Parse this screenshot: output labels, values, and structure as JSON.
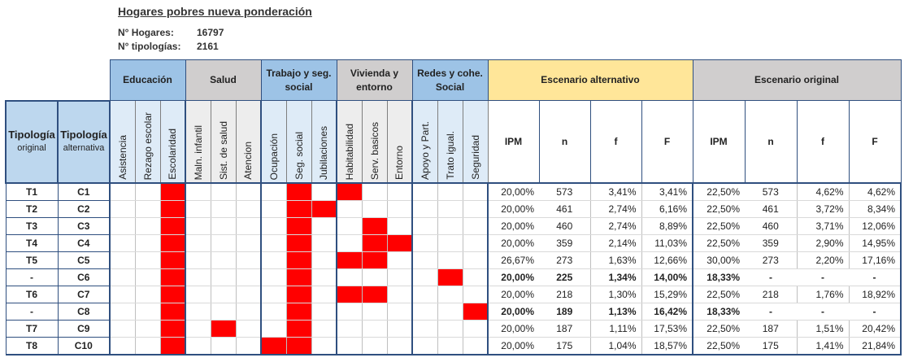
{
  "title": "Hogares pobres nueva ponderación",
  "info": {
    "hogares_label": "N° Hogares:",
    "hogares_value": "16797",
    "tipologias_label": "N° tipologías:",
    "tipologias_value": "2161"
  },
  "groups": {
    "educacion": "Educación",
    "salud": "Salud",
    "trabajo": "Trabajo y seg. social",
    "vivienda": "Vivienda y entorno",
    "redes": "Redes y cohe. Social",
    "alternativo": "Escenario alternativo",
    "original": "Escenario original"
  },
  "tipologia_original": {
    "title": "Tipología",
    "sub": "original"
  },
  "tipologia_alternativa": {
    "title": "Tipología",
    "sub": "alternativa"
  },
  "indicators": [
    "Asistencia",
    "Rezago escolar",
    "Escolaridad",
    "Maln. infantil",
    "Sist. de salud",
    "Atencion",
    "Ocupación",
    "Seg. social",
    "Jubilaciones",
    "Habitabilidad",
    "Serv. basicos",
    "Entorno",
    "Apoyo y Part.",
    "Trato igual.",
    "Seguridad"
  ],
  "metric_headers": [
    "IPM",
    "n",
    "f",
    "F",
    "IPM",
    "n",
    "f",
    "F"
  ],
  "rows": [
    {
      "orig": "T1",
      "alt": "C1",
      "red": [
        2,
        7,
        9
      ],
      "alt_ipm": "20,00%",
      "alt_n": "573",
      "alt_f": "3,41%",
      "alt_F": "3,41%",
      "orig_ipm": "22,50%",
      "orig_n": "573",
      "orig_f": "4,62%",
      "orig_F": "4,62%",
      "bold": false
    },
    {
      "orig": "T2",
      "alt": "C2",
      "red": [
        2,
        7,
        8
      ],
      "alt_ipm": "20,00%",
      "alt_n": "461",
      "alt_f": "2,74%",
      "alt_F": "6,16%",
      "orig_ipm": "22,50%",
      "orig_n": "461",
      "orig_f": "3,72%",
      "orig_F": "8,34%",
      "bold": false
    },
    {
      "orig": "T3",
      "alt": "C3",
      "red": [
        2,
        7,
        10
      ],
      "alt_ipm": "20,00%",
      "alt_n": "460",
      "alt_f": "2,74%",
      "alt_F": "8,89%",
      "orig_ipm": "22,50%",
      "orig_n": "460",
      "orig_f": "3,71%",
      "orig_F": "12,06%",
      "bold": false
    },
    {
      "orig": "T4",
      "alt": "C4",
      "red": [
        2,
        7,
        10,
        11
      ],
      "alt_ipm": "20,00%",
      "alt_n": "359",
      "alt_f": "2,14%",
      "alt_F": "11,03%",
      "orig_ipm": "22,50%",
      "orig_n": "359",
      "orig_f": "2,90%",
      "orig_F": "14,95%",
      "bold": false
    },
    {
      "orig": "T5",
      "alt": "C5",
      "red": [
        2,
        7,
        9,
        10
      ],
      "alt_ipm": "26,67%",
      "alt_n": "273",
      "alt_f": "1,63%",
      "alt_F": "12,66%",
      "orig_ipm": "30,00%",
      "orig_n": "273",
      "orig_f": "2,20%",
      "orig_F": "17,16%",
      "bold": false
    },
    {
      "orig": "-",
      "alt": "C6",
      "red": [
        2,
        7,
        13
      ],
      "alt_ipm": "20,00%",
      "alt_n": "225",
      "alt_f": "1,34%",
      "alt_F": "14,00%",
      "orig_ipm": "18,33%",
      "orig_n": "-",
      "orig_f": "-",
      "orig_F": "-",
      "bold": true
    },
    {
      "orig": "T6",
      "alt": "C7",
      "red": [
        2,
        7,
        9,
        10
      ],
      "alt_ipm": "20,00%",
      "alt_n": "218",
      "alt_f": "1,30%",
      "alt_F": "15,29%",
      "orig_ipm": "22,50%",
      "orig_n": "218",
      "orig_f": "1,76%",
      "orig_F": "18,92%",
      "bold": false
    },
    {
      "orig": "-",
      "alt": "C8",
      "red": [
        2,
        7,
        14
      ],
      "alt_ipm": "20,00%",
      "alt_n": "189",
      "alt_f": "1,13%",
      "alt_F": "16,42%",
      "orig_ipm": "18,33%",
      "orig_n": "-",
      "orig_f": "-",
      "orig_F": "-",
      "bold": true
    },
    {
      "orig": "T7",
      "alt": "C9",
      "red": [
        2,
        4,
        7
      ],
      "alt_ipm": "20,00%",
      "alt_n": "187",
      "alt_f": "1,11%",
      "alt_F": "17,53%",
      "orig_ipm": "22,50%",
      "orig_n": "187",
      "orig_f": "1,51%",
      "orig_F": "20,42%",
      "bold": false
    },
    {
      "orig": "T8",
      "alt": "C10",
      "red": [
        2,
        6,
        7
      ],
      "alt_ipm": "20,00%",
      "alt_n": "175",
      "alt_f": "1,04%",
      "alt_F": "18,57%",
      "orig_ipm": "22,50%",
      "orig_n": "175",
      "orig_f": "1,41%",
      "orig_F": "21,84%",
      "bold": false
    }
  ],
  "colors": {
    "red": "#ff0000",
    "blue_group": "#9dc3e6",
    "gray_group": "#d0cece",
    "yellow_group": "#ffe699"
  }
}
